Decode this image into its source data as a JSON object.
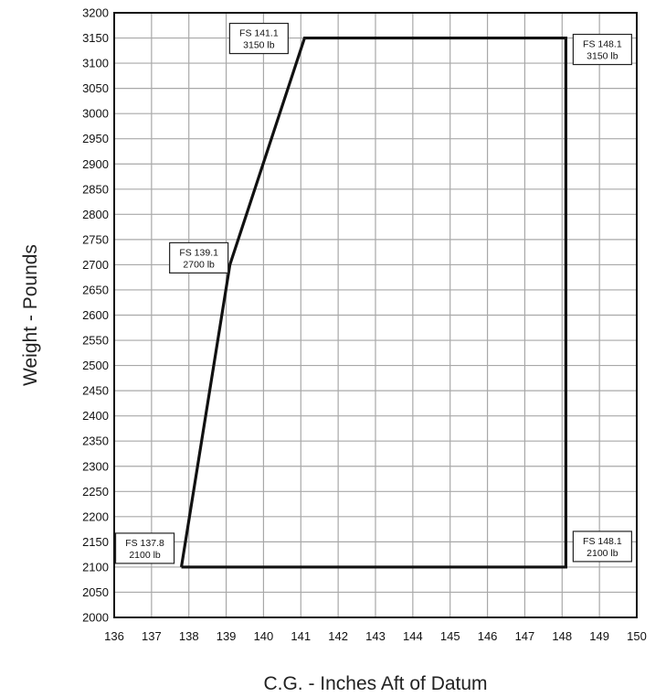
{
  "chart_data": {
    "type": "line",
    "title": "",
    "xlabel": "C.G. - Inches Aft of Datum",
    "ylabel": "Weight - Pounds",
    "xlim": [
      136,
      150
    ],
    "ylim": [
      2000,
      3200
    ],
    "x_ticks": [
      136,
      137,
      138,
      139,
      140,
      141,
      142,
      143,
      144,
      145,
      146,
      147,
      148,
      149,
      150
    ],
    "y_ticks": [
      2000,
      2050,
      2100,
      2150,
      2200,
      2250,
      2300,
      2350,
      2400,
      2450,
      2500,
      2550,
      2600,
      2650,
      2700,
      2750,
      2800,
      2850,
      2900,
      2950,
      3000,
      3050,
      3100,
      3150,
      3200
    ],
    "grid": true,
    "legend": "none",
    "series": [
      {
        "points": [
          {
            "x": 137.8,
            "y": 2100
          },
          {
            "x": 139.1,
            "y": 2700
          },
          {
            "x": 141.1,
            "y": 3150
          },
          {
            "x": 148.1,
            "y": 3150
          },
          {
            "x": 148.1,
            "y": 2100
          },
          {
            "x": 137.8,
            "y": 2100
          }
        ]
      }
    ],
    "annotations": [
      {
        "line1": "FS 137.8",
        "line2": "2100 lb",
        "x": 137.8,
        "y": 2100
      },
      {
        "line1": "FS 139.1",
        "line2": "2700 lb",
        "x": 139.1,
        "y": 2700
      },
      {
        "line1": "FS 141.1",
        "line2": "3150 lb",
        "x": 141.1,
        "y": 3150
      },
      {
        "line1": "FS 148.1",
        "line2": "3150 lb",
        "x": 148.1,
        "y": 3150
      },
      {
        "line1": "FS 148.1",
        "line2": "2100 lb",
        "x": 148.1,
        "y": 2100
      }
    ],
    "colors": {
      "grid": "#a8a8a8",
      "frame": "#111111",
      "envelope": "#111111"
    }
  }
}
